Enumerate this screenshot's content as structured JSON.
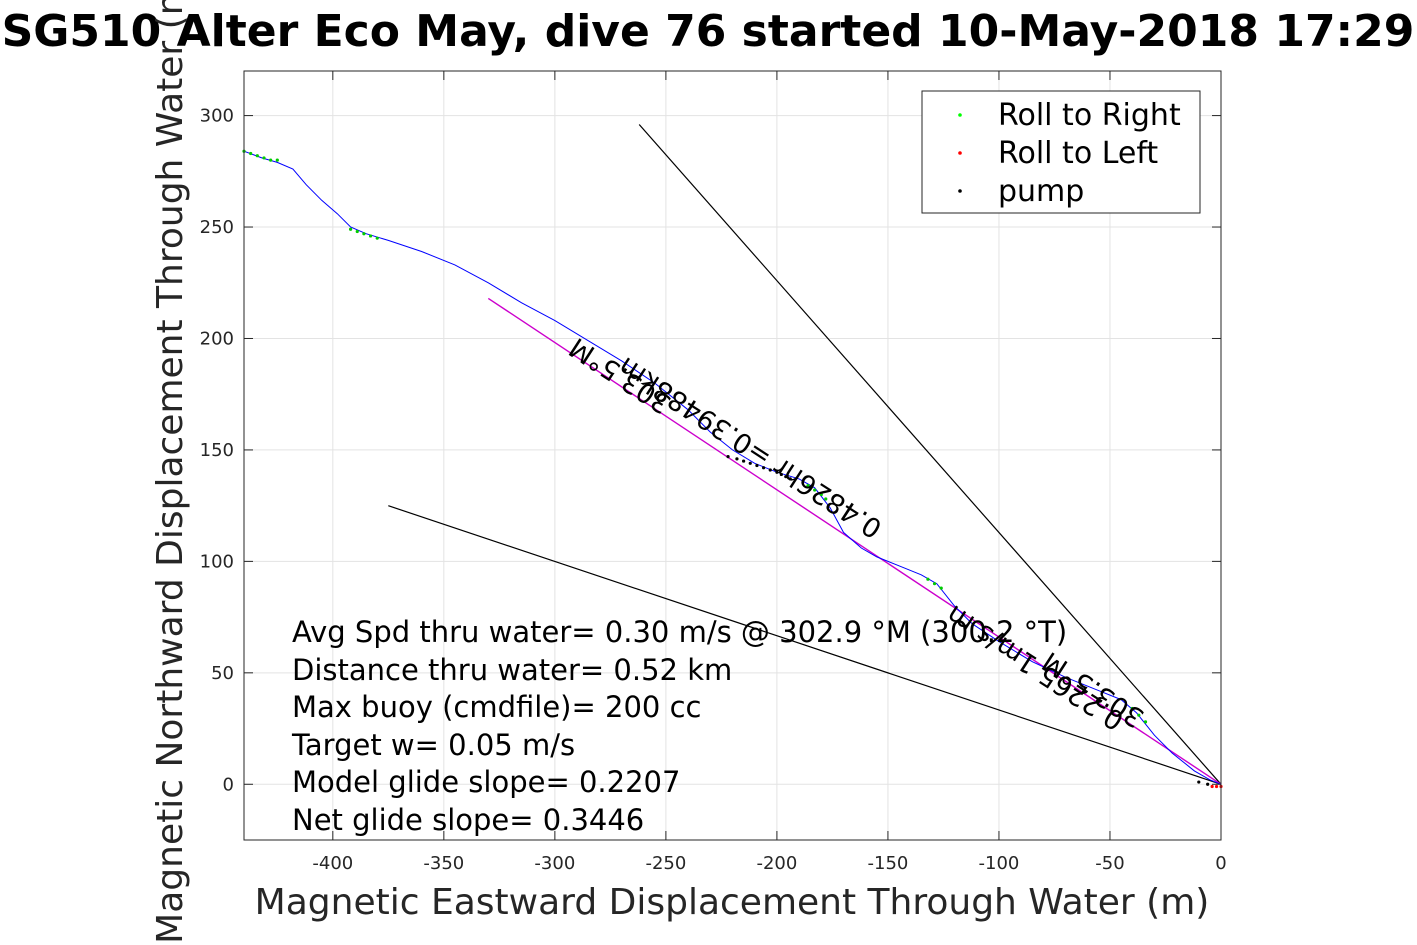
{
  "chart_data": {
    "type": "line",
    "title": "SG510 Alter Eco May, dive 76 started 10-May-2018 17:29",
    "xlabel": "Magnetic Eastward Displacement Through Water (m)",
    "ylabel": "Magnetic Northward Displacement Through Water (m)",
    "xlim": [
      -440,
      0
    ],
    "ylim": [
      -25,
      320
    ],
    "xticks": [
      -400,
      -350,
      -300,
      -250,
      -200,
      -150,
      -100,
      -50,
      0
    ],
    "yticks": [
      0,
      50,
      100,
      150,
      200,
      250,
      300
    ],
    "grid": true,
    "legend_position": "top-right",
    "legend": [
      {
        "label": "Roll to Right",
        "color": "#00ff00"
      },
      {
        "label": "Roll to Left",
        "color": "#ff0000"
      },
      {
        "label": "pump",
        "color": "#000000"
      }
    ],
    "track": {
      "color": "#0000ff",
      "points": [
        [
          -440,
          284
        ],
        [
          -432,
          281
        ],
        [
          -425,
          279
        ],
        [
          -418,
          276
        ],
        [
          -412,
          269
        ],
        [
          -405,
          262
        ],
        [
          -398,
          256
        ],
        [
          -392,
          250
        ],
        [
          -385,
          247
        ],
        [
          -375,
          244
        ],
        [
          -360,
          239
        ],
        [
          -345,
          233
        ],
        [
          -330,
          225
        ],
        [
          -315,
          216
        ],
        [
          -300,
          208
        ],
        [
          -285,
          199
        ],
        [
          -270,
          190
        ],
        [
          -255,
          180
        ],
        [
          -240,
          168
        ],
        [
          -230,
          158
        ],
        [
          -220,
          150
        ],
        [
          -210,
          144
        ],
        [
          -200,
          140
        ],
        [
          -190,
          137
        ],
        [
          -183,
          133
        ],
        [
          -176,
          124
        ],
        [
          -170,
          113
        ],
        [
          -162,
          106
        ],
        [
          -155,
          102
        ],
        [
          -145,
          98
        ],
        [
          -135,
          94
        ],
        [
          -128,
          90
        ],
        [
          -120,
          80
        ],
        [
          -112,
          72
        ],
        [
          -100,
          64
        ],
        [
          -85,
          55
        ],
        [
          -70,
          48
        ],
        [
          -55,
          42
        ],
        [
          -45,
          38
        ],
        [
          -38,
          32
        ],
        [
          -30,
          22
        ],
        [
          -22,
          14
        ],
        [
          -12,
          6
        ],
        [
          -5,
          2
        ],
        [
          0,
          0
        ]
      ]
    },
    "roll_right": [
      [
        -440,
        284
      ],
      [
        -437,
        283
      ],
      [
        -434,
        282
      ],
      [
        -431,
        281
      ],
      [
        -428,
        280
      ],
      [
        -425,
        280
      ],
      [
        -392,
        249
      ],
      [
        -389,
        248
      ],
      [
        -386,
        247
      ],
      [
        -383,
        246
      ],
      [
        -380,
        245
      ],
      [
        -186,
        134
      ],
      [
        -183,
        132
      ],
      [
        -180,
        130
      ],
      [
        -178,
        128
      ],
      [
        -132,
        92
      ],
      [
        -129,
        90
      ],
      [
        -126,
        88
      ],
      [
        -40,
        34
      ],
      [
        -37,
        31
      ],
      [
        -34,
        28
      ]
    ],
    "roll_left": [
      [
        -4,
        -1
      ],
      [
        -2,
        -1
      ],
      [
        0,
        -1
      ]
    ],
    "pump_points": [
      [
        -222,
        147
      ],
      [
        -218,
        146
      ],
      [
        -215,
        145
      ],
      [
        -212,
        144
      ],
      [
        -209,
        143
      ],
      [
        -206,
        142
      ],
      [
        -203,
        141
      ],
      [
        -200,
        140
      ],
      [
        -198,
        139
      ],
      [
        -196,
        138
      ],
      [
        -194,
        137
      ],
      [
        -10,
        1
      ],
      [
        -6,
        0
      ]
    ],
    "fit_line": {
      "color": "#cc00cc",
      "points": [
        [
          -330,
          218
        ],
        [
          0,
          0
        ]
      ]
    },
    "heading_line_upper": {
      "color": "#000000",
      "points": [
        [
          -262,
          296
        ],
        [
          0,
          0
        ]
      ]
    },
    "heading_line_lower": {
      "color": "#000000",
      "points": [
        [
          -375,
          125
        ],
        [
          0,
          0
        ]
      ]
    },
    "rotated_labels": [
      {
        "text": "303.5°M",
        "x": -245,
        "y": 200
      },
      {
        "text": "0.4826hr =0.39488km",
        "x": -175,
        "y": 148
      },
      {
        "text": "303.5°M",
        "x": -65,
        "y": 46
      },
      {
        "text": "0.2265 1m/s m",
        "x": -90,
        "y": 45
      }
    ],
    "annotations": [
      "Avg Spd thru water=  0.30 m/s @ 302.9 °M (300.2 °T)",
      "Distance thru water=  0.52 km",
      "Max buoy (cmdfile)= 200 cc",
      "Target w= 0.05 m/s",
      "Model glide slope= 0.2207",
      "Net glide slope= 0.3446"
    ]
  }
}
